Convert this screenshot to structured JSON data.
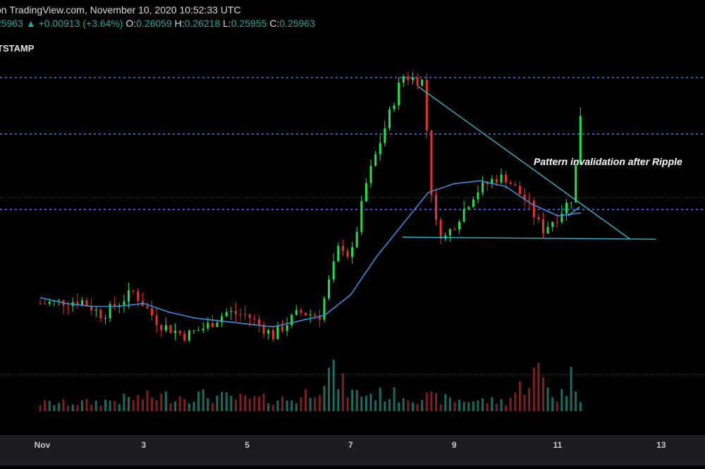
{
  "header": {
    "source": "on TradingView.com, November 10, 2020 10:52:33 UTC",
    "price": "25963",
    "change": "▲ +0.00913 (+3.64%)",
    "o_label": "O:",
    "o_value": "0.26059",
    "h_label": "H:",
    "h_value": "0.26218",
    "l_label": "L:",
    "l_value": "0.25955",
    "c_label": "C:",
    "c_value": "0.25963",
    "symbol": "TSTAMP"
  },
  "colors": {
    "background": "#000000",
    "up": "#26a69a",
    "candle_up": "#22e04a",
    "candle_down": "#e5322e",
    "moving_average": "#3d8bd9",
    "levels": "#4f6df0",
    "trendline": "#37b6c6"
  },
  "annotation": "Pattern invalidation after Ripple",
  "chart_data": {
    "type": "candlestick",
    "x_ticks": [
      "Nov",
      "3",
      "5",
      "7",
      "9",
      "11",
      "13"
    ],
    "series": [
      {
        "name": "",
        "kind": "price",
        "t": [
          0,
          0.8,
          1.2,
          1.8,
          2.3,
          2.8,
          3.2,
          3.6,
          4.0,
          4.5,
          5.0,
          5.4,
          5.8,
          6.0,
          6.3,
          6.6,
          7.0,
          7.4,
          7.6,
          7.8,
          8.0,
          8.4,
          8.8,
          9.0,
          9.4,
          9.7,
          10.0,
          10.3,
          10.45
        ],
        "close": [
          0.1925,
          0.1935,
          0.1885,
          0.1965,
          0.1855,
          0.1815,
          0.1845,
          0.1895,
          0.1885,
          0.1815,
          0.1895,
          0.1885,
          0.2135,
          0.2075,
          0.2335,
          0.2495,
          0.2705,
          0.2685,
          0.2215,
          0.2145,
          0.2195,
          0.2305,
          0.2355,
          0.2355,
          0.2275,
          0.2175,
          0.2225,
          0.2295,
          0.2595
        ]
      },
      {
        "name": "",
        "kind": "moving-average",
        "t": [
          0,
          0.5,
          1.0,
          1.5,
          2.0,
          2.5,
          3.0,
          3.5,
          4.0,
          4.5,
          5.0,
          5.5,
          6.0,
          6.5,
          7.0,
          7.5,
          8.0,
          8.5,
          9.0,
          9.5,
          10.0,
          10.45
        ],
        "value": [
          0.1945,
          0.1925,
          0.1915,
          0.1915,
          0.1925,
          0.1895,
          0.1875,
          0.1865,
          0.1855,
          0.1845,
          0.1865,
          0.1885,
          0.1955,
          0.2085,
          0.2195,
          0.2305,
          0.2335,
          0.2345,
          0.2325,
          0.2265,
          0.2225,
          0.2235
        ]
      },
      {
        "name": "",
        "kind": "volume",
        "t": [
          0,
          1,
          2,
          3,
          4,
          5,
          5.6,
          6,
          7,
          8,
          9,
          9.6,
          10,
          10.3,
          10.45
        ],
        "value": [
          20,
          22,
          35,
          40,
          30,
          30,
          100,
          45,
          40,
          28,
          25,
          100,
          30,
          90,
          40
        ]
      }
    ],
    "levels": [
      0.2698,
      0.2505,
      0.2247
    ],
    "trendlines": [
      {
        "t": [
          7.3,
          11.4
        ],
        "value": [
          0.2668,
          0.2145
        ]
      },
      {
        "t": [
          7.0,
          11.9
        ],
        "value": [
          0.2152,
          0.2145
        ]
      }
    ]
  }
}
